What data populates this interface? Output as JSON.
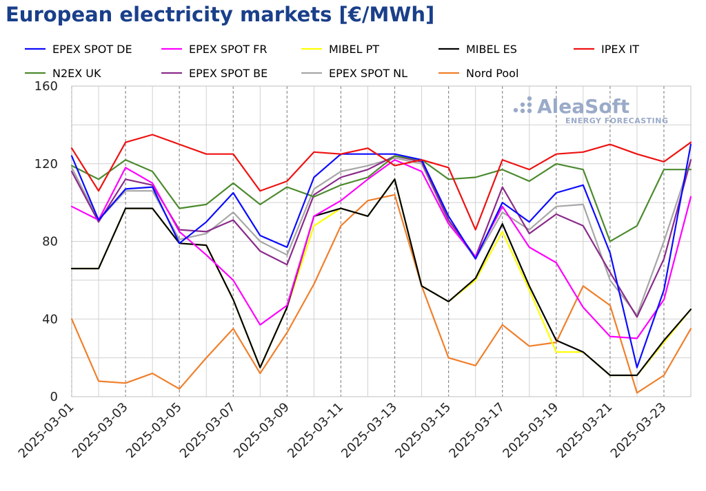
{
  "title": "European electricity markets [€/MWh]",
  "logo": {
    "main": "AleaSoft",
    "sub": "ENERGY FORECASTING"
  },
  "chart_data": {
    "type": "line",
    "title": "European electricity markets [€/MWh]",
    "xlabel": "",
    "ylabel": "",
    "ylim": [
      0,
      160
    ],
    "yticks": [
      0,
      40,
      80,
      120,
      160
    ],
    "grid": true,
    "legend_placement": "top",
    "x": [
      "2025-03-01",
      "2025-03-02",
      "2025-03-03",
      "2025-03-04",
      "2025-03-05",
      "2025-03-06",
      "2025-03-07",
      "2025-03-08",
      "2025-03-09",
      "2025-03-10",
      "2025-03-11",
      "2025-03-12",
      "2025-03-13",
      "2025-03-14",
      "2025-03-15",
      "2025-03-16",
      "2025-03-17",
      "2025-03-18",
      "2025-03-19",
      "2025-03-20",
      "2025-03-21",
      "2025-03-22",
      "2025-03-23",
      "2025-03-24"
    ],
    "xtick_labels": [
      "2025-03-01",
      "2025-03-03",
      "2025-03-05",
      "2025-03-07",
      "2025-03-09",
      "2025-03-11",
      "2025-03-13",
      "2025-03-15",
      "2025-03-17",
      "2025-03-19",
      "2025-03-21",
      "2025-03-23"
    ],
    "series": [
      {
        "name": "EPEX SPOT DE",
        "color": "#0b0bff",
        "values": [
          124,
          91,
          107,
          108,
          79,
          90,
          105,
          83,
          77,
          113,
          125,
          125,
          125,
          122,
          93,
          71,
          100,
          90,
          105,
          109,
          74,
          15,
          55,
          130
        ]
      },
      {
        "name": "EPEX SPOT FR",
        "color": "#ff00ff",
        "values": [
          98,
          91,
          118,
          110,
          85,
          73,
          60,
          37,
          47,
          93,
          101,
          112,
          122,
          116,
          89,
          72,
          98,
          77,
          69,
          46,
          31,
          30,
          50,
          103
        ]
      },
      {
        "name": "MIBEL PT",
        "color": "#ffff00",
        "values": [
          66,
          66,
          97,
          97,
          79,
          78,
          50,
          15,
          46,
          88,
          97,
          93,
          112,
          57,
          49,
          60,
          85,
          55,
          23,
          23,
          11,
          11,
          28,
          45
        ]
      },
      {
        "name": "MIBEL ES",
        "color": "#000000",
        "values": [
          66,
          66,
          97,
          97,
          79,
          78,
          50,
          15,
          46,
          93,
          97,
          93,
          112,
          57,
          49,
          61,
          89,
          57,
          29,
          23,
          11,
          11,
          29,
          45
        ]
      },
      {
        "name": "IPEX IT",
        "color": "#ee1111",
        "values": [
          128,
          106,
          131,
          135,
          130,
          125,
          125,
          106,
          111,
          126,
          125,
          128,
          119,
          122,
          118,
          86,
          122,
          117,
          125,
          126,
          130,
          125,
          121,
          131
        ]
      },
      {
        "name": "N2EX UK",
        "color": "#4c8a2e",
        "values": [
          119,
          112,
          122,
          116,
          97,
          99,
          110,
          99,
          108,
          103,
          109,
          113,
          124,
          122,
          112,
          113,
          117,
          111,
          120,
          117,
          80,
          88,
          117,
          117
        ]
      },
      {
        "name": "EPEX SPOT BE",
        "color": "#8a2b8a",
        "values": [
          116,
          90,
          112,
          109,
          86,
          85,
          91,
          75,
          68,
          104,
          113,
          117,
          124,
          121,
          91,
          72,
          108,
          84,
          94,
          88,
          64,
          41,
          71,
          122
        ]
      },
      {
        "name": "EPEX SPOT NL",
        "color": "#a6a6a6",
        "values": [
          118,
          91,
          106,
          106,
          81,
          84,
          95,
          80,
          73,
          107,
          116,
          119,
          123,
          120,
          90,
          71,
          95,
          86,
          98,
          99,
          60,
          42,
          80,
          122
        ]
      },
      {
        "name": "Nord Pool",
        "color": "#f07f2a",
        "values": [
          40,
          8,
          7,
          12,
          4,
          20,
          35,
          12,
          33,
          58,
          88,
          101,
          104,
          57,
          20,
          16,
          37,
          26,
          28,
          57,
          47,
          2,
          11,
          35
        ]
      }
    ]
  }
}
